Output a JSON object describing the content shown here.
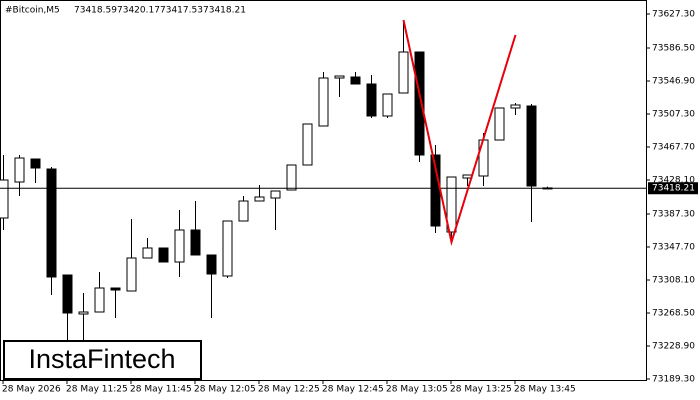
{
  "chart_data": {
    "type": "candlestick",
    "symbol": "#Bitcoin,M5",
    "brand": "InstaFintech",
    "categories": [
      "28 May 2026",
      null,
      null,
      null,
      "28 May 11:25",
      null,
      null,
      null,
      "28 May 11:45",
      null,
      null,
      null,
      "28 May 12:05",
      null,
      null,
      null,
      "28 May 12:25",
      null,
      null,
      null,
      "28 May 12:45",
      null,
      null,
      null,
      "28 May 13:05",
      null,
      null,
      null,
      "28 May 13:25",
      null,
      null,
      null,
      "28 May 13:45",
      null,
      null
    ],
    "open": [
      73382.5,
      73425.7,
      73453.3,
      73441.3,
      73314.1,
      73267.3,
      73269.7,
      73298.5,
      73294.9,
      73334.5,
      73346.5,
      73329.7,
      73368.1,
      73338.1,
      73312.9,
      73378.9,
      73402.9,
      73406.5,
      73416.1,
      73446.1,
      73492.9,
      73550.5,
      73551.7,
      73543.3,
      73504.9,
      73532.5,
      73581.7,
      73458.1,
      73365.7,
      73430.5,
      73432.9,
      73476.1,
      73514.5,
      73516.9,
      73418.59
    ],
    "high": [
      73458.1,
      73458.1,
      73453.3,
      73443.7,
      73314.1,
      73292.5,
      73317.7,
      73298.5,
      73381.3,
      73358.5,
      73346.5,
      73392.1,
      73402.9,
      73338.1,
      73378.9,
      73408.9,
      73422.1,
      73414.9,
      73446.1,
      73495.3,
      73557.7,
      73552.9,
      73557.7,
      73554.1,
      73531.3,
      73617.7,
      73581.7,
      73470.1,
      73431.7,
      73434.1,
      73484.5,
      73514.5,
      73520.5,
      73519.3,
      73420.17
    ],
    "low": [
      73368.1,
      73408.9,
      73424.5,
      73290.1,
      73236.1,
      73236.1,
      73269.7,
      73262.5,
      73294.9,
      73334.5,
      73329.7,
      73311.7,
      73338.1,
      73262.5,
      73310.5,
      73378.9,
      73402.9,
      73368.1,
      73416.1,
      73446.1,
      73492.9,
      73527.7,
      73543.3,
      73502.5,
      73502.5,
      73532.5,
      73449.7,
      73364.5,
      73356.1,
      73420.9,
      73420.9,
      73476.1,
      73506.1,
      73377.7,
      73417.53
    ],
    "close": [
      73428.1,
      73454.5,
      73442.5,
      73311.7,
      73268.5,
      73269.7,
      73298.5,
      73296.1,
      73334.5,
      73346.5,
      73329.7,
      73368.1,
      73338.1,
      73315.3,
      73378.9,
      73402.9,
      73407.7,
      73414.9,
      73446.1,
      73495.3,
      73550.5,
      73552.9,
      73543.3,
      73504.9,
      73531.3,
      73581.7,
      73458.1,
      73372.9,
      73431.7,
      73434.1,
      73476.1,
      73514.5,
      73518.1,
      73420.9,
      73418.21
    ],
    "up_color": "#ffffff",
    "down_color": "#000000",
    "pattern": {
      "color": "#e8000b",
      "x": [
        25,
        28,
        32
      ],
      "values": [
        73620.1,
        73353.7,
        73602.1
      ]
    },
    "ylim": [
      73188.1,
      73644.1
    ],
    "yticks": [
      {
        "value": 73627.3,
        "label": "73627.30"
      },
      {
        "value": 73586.5,
        "label": "73586.50"
      },
      {
        "value": 73546.9,
        "label": "73546.90"
      },
      {
        "value": 73507.3,
        "label": "73507.30"
      },
      {
        "value": 73467.7,
        "label": "73467.70"
      },
      {
        "value": 73428.1,
        "label": "73428.10"
      },
      {
        "value": 73387.3,
        "label": "73387.30"
      },
      {
        "value": 73347.7,
        "label": "73347.70"
      },
      {
        "value": 73308.1,
        "label": "73308.10"
      },
      {
        "value": 73268.5,
        "label": "73268.50"
      },
      {
        "value": 73228.9,
        "label": "73228.90"
      },
      {
        "value": 73189.3,
        "label": "73189.30"
      }
    ]
  }
}
